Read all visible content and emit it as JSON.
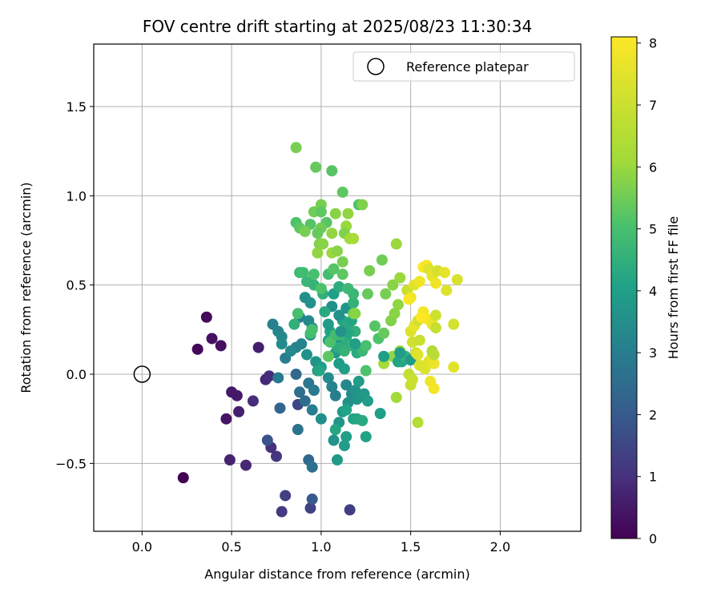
{
  "chart_data": {
    "type": "scatter",
    "title": "FOV centre drift starting at 2025/08/23 11:30:34",
    "xlabel": "Angular distance from reference (arcmin)",
    "ylabel": "Rotation from reference (arcmin)",
    "xlim": [
      -0.27,
      2.45
    ],
    "ylim": [
      -0.88,
      1.85
    ],
    "xticks": [
      0.0,
      0.5,
      1.0,
      1.5,
      2.0
    ],
    "xtick_labels": [
      "0.0",
      "0.5",
      "1.0",
      "1.5",
      "2.0"
    ],
    "yticks": [
      -0.5,
      0.0,
      0.5,
      1.0,
      1.5
    ],
    "ytick_labels": [
      "−0.5",
      "0.0",
      "0.5",
      "1.0",
      "1.5"
    ],
    "grid": true,
    "legend": {
      "position": "top-right",
      "entries": [
        "Reference platepar"
      ]
    },
    "reference_point": {
      "x": 0.0,
      "y": 0.0
    },
    "colorbar": {
      "label": "Hours from first FF file",
      "colormap": "viridis",
      "range": [
        0,
        8.1
      ],
      "ticks": [
        0,
        1,
        2,
        3,
        4,
        5,
        6,
        7,
        8
      ],
      "tick_labels": [
        "0",
        "1",
        "2",
        "3",
        "4",
        "5",
        "6",
        "7",
        "8"
      ]
    },
    "points": [
      {
        "x": 0.23,
        "y": -0.58,
        "h": 0.0
      },
      {
        "x": 0.31,
        "y": 0.14,
        "h": 0.1
      },
      {
        "x": 0.36,
        "y": 0.32,
        "h": 0.2
      },
      {
        "x": 0.39,
        "y": 0.2,
        "h": 0.3
      },
      {
        "x": 0.44,
        "y": 0.16,
        "h": 0.3
      },
      {
        "x": 0.47,
        "y": -0.25,
        "h": 0.4
      },
      {
        "x": 0.5,
        "y": -0.1,
        "h": 0.5
      },
      {
        "x": 0.53,
        "y": -0.12,
        "h": 0.5
      },
      {
        "x": 0.54,
        "y": -0.21,
        "h": 0.6
      },
      {
        "x": 0.49,
        "y": -0.48,
        "h": 0.7
      },
      {
        "x": 0.58,
        "y": -0.51,
        "h": 0.8
      },
      {
        "x": 0.62,
        "y": -0.15,
        "h": 0.9
      },
      {
        "x": 0.65,
        "y": 0.15,
        "h": 0.6
      },
      {
        "x": 0.69,
        "y": -0.03,
        "h": 0.8
      },
      {
        "x": 0.71,
        "y": -0.01,
        "h": 0.9
      },
      {
        "x": 0.72,
        "y": -0.41,
        "h": 1.0
      },
      {
        "x": 0.75,
        "y": -0.46,
        "h": 1.1
      },
      {
        "x": 0.78,
        "y": -0.77,
        "h": 1.2
      },
      {
        "x": 0.8,
        "y": -0.68,
        "h": 1.3
      },
      {
        "x": 0.94,
        "y": -0.75,
        "h": 1.4
      },
      {
        "x": 1.16,
        "y": -0.76,
        "h": 1.3
      },
      {
        "x": 0.87,
        "y": -0.17,
        "h": 1.5
      },
      {
        "x": 0.7,
        "y": -0.37,
        "h": 1.8
      },
      {
        "x": 0.95,
        "y": -0.7,
        "h": 2.0
      },
      {
        "x": 0.77,
        "y": -0.19,
        "h": 2.3
      },
      {
        "x": 0.86,
        "y": 0.0,
        "h": 2.4
      },
      {
        "x": 0.93,
        "y": -0.48,
        "h": 2.4
      },
      {
        "x": 0.95,
        "y": -0.52,
        "h": 2.6
      },
      {
        "x": 0.87,
        "y": -0.31,
        "h": 2.7
      },
      {
        "x": 0.88,
        "y": -0.1,
        "h": 2.6
      },
      {
        "x": 0.91,
        "y": -0.15,
        "h": 2.5
      },
      {
        "x": 0.93,
        "y": -0.05,
        "h": 2.8
      },
      {
        "x": 0.96,
        "y": -0.09,
        "h": 2.9
      },
      {
        "x": 0.95,
        "y": -0.2,
        "h": 3.0
      },
      {
        "x": 0.76,
        "y": -0.02,
        "h": 2.9
      },
      {
        "x": 0.8,
        "y": 0.09,
        "h": 3.0
      },
      {
        "x": 0.86,
        "y": 0.15,
        "h": 3.1
      },
      {
        "x": 0.89,
        "y": 0.17,
        "h": 3.2
      },
      {
        "x": 0.83,
        "y": 0.13,
        "h": 3.3
      },
      {
        "x": 0.73,
        "y": 0.28,
        "h": 3.1
      },
      {
        "x": 0.76,
        "y": 0.24,
        "h": 3.2
      },
      {
        "x": 0.78,
        "y": 0.21,
        "h": 3.3
      },
      {
        "x": 0.78,
        "y": 0.17,
        "h": 3.4
      },
      {
        "x": 0.88,
        "y": 0.32,
        "h": 3.1
      },
      {
        "x": 0.93,
        "y": 0.3,
        "h": 3.3
      },
      {
        "x": 0.91,
        "y": 0.43,
        "h": 3.5
      },
      {
        "x": 0.94,
        "y": 0.4,
        "h": 3.6
      },
      {
        "x": 0.95,
        "y": 0.26,
        "h": 3.4
      },
      {
        "x": 0.94,
        "y": 0.22,
        "h": 3.5
      },
      {
        "x": 0.92,
        "y": 0.11,
        "h": 3.6
      },
      {
        "x": 0.97,
        "y": 0.07,
        "h": 3.7
      },
      {
        "x": 0.98,
        "y": 0.02,
        "h": 3.8
      },
      {
        "x": 1.0,
        "y": 0.04,
        "h": 3.9
      },
      {
        "x": 1.04,
        "y": -0.02,
        "h": 3.4
      },
      {
        "x": 1.06,
        "y": -0.07,
        "h": 3.2
      },
      {
        "x": 1.08,
        "y": -0.12,
        "h": 3.0
      },
      {
        "x": 1.0,
        "y": -0.25,
        "h": 3.5
      },
      {
        "x": 1.07,
        "y": -0.37,
        "h": 3.6
      },
      {
        "x": 1.1,
        "y": -0.27,
        "h": 3.7
      },
      {
        "x": 1.12,
        "y": -0.21,
        "h": 3.8
      },
      {
        "x": 1.15,
        "y": -0.16,
        "h": 3.5
      },
      {
        "x": 1.17,
        "y": -0.11,
        "h": 3.4
      },
      {
        "x": 1.14,
        "y": -0.06,
        "h": 3.3
      },
      {
        "x": 1.19,
        "y": -0.09,
        "h": 3.6
      },
      {
        "x": 1.2,
        "y": -0.14,
        "h": 3.7
      },
      {
        "x": 1.21,
        "y": -0.04,
        "h": 3.9
      },
      {
        "x": 1.24,
        "y": -0.11,
        "h": 3.8
      },
      {
        "x": 1.26,
        "y": -0.15,
        "h": 3.9
      },
      {
        "x": 1.13,
        "y": -0.4,
        "h": 3.9
      },
      {
        "x": 1.14,
        "y": -0.35,
        "h": 4.0
      },
      {
        "x": 1.09,
        "y": -0.48,
        "h": 3.8
      },
      {
        "x": 1.18,
        "y": -0.25,
        "h": 4.1
      },
      {
        "x": 1.2,
        "y": -0.25,
        "h": 4.2
      },
      {
        "x": 1.23,
        "y": -0.26,
        "h": 4.3
      },
      {
        "x": 1.25,
        "y": -0.35,
        "h": 4.1
      },
      {
        "x": 1.33,
        "y": -0.22,
        "h": 4.0
      },
      {
        "x": 1.1,
        "y": 0.06,
        "h": 3.9
      },
      {
        "x": 1.13,
        "y": 0.03,
        "h": 4.0
      },
      {
        "x": 1.08,
        "y": 0.12,
        "h": 3.8
      },
      {
        "x": 1.11,
        "y": 0.19,
        "h": 3.7
      },
      {
        "x": 1.04,
        "y": 0.19,
        "h": 4.0
      },
      {
        "x": 1.05,
        "y": 0.24,
        "h": 4.1
      },
      {
        "x": 1.12,
        "y": 0.3,
        "h": 4.2
      },
      {
        "x": 1.15,
        "y": 0.28,
        "h": 4.3
      },
      {
        "x": 1.14,
        "y": 0.2,
        "h": 4.4
      },
      {
        "x": 1.19,
        "y": 0.24,
        "h": 4.5
      },
      {
        "x": 1.17,
        "y": 0.16,
        "h": 4.6
      },
      {
        "x": 1.09,
        "y": 0.15,
        "h": 4.4
      },
      {
        "x": 1.1,
        "y": 0.33,
        "h": 3.6
      },
      {
        "x": 1.14,
        "y": 0.37,
        "h": 3.7
      },
      {
        "x": 1.06,
        "y": 0.38,
        "h": 3.5
      },
      {
        "x": 1.02,
        "y": 0.35,
        "h": 4.3
      },
      {
        "x": 1.04,
        "y": 0.28,
        "h": 3.9
      },
      {
        "x": 1.01,
        "y": 0.45,
        "h": 4.5
      },
      {
        "x": 1.07,
        "y": 0.45,
        "h": 4.0
      },
      {
        "x": 1.1,
        "y": 0.49,
        "h": 4.4
      },
      {
        "x": 1.15,
        "y": 0.48,
        "h": 4.5
      },
      {
        "x": 1.18,
        "y": 0.4,
        "h": 4.6
      },
      {
        "x": 1.17,
        "y": 0.3,
        "h": 4.2
      },
      {
        "x": 1.2,
        "y": 0.12,
        "h": 4.3
      },
      {
        "x": 1.23,
        "y": 0.13,
        "h": 4.7
      },
      {
        "x": 1.25,
        "y": 0.16,
        "h": 5.0
      },
      {
        "x": 1.25,
        "y": 0.02,
        "h": 5.1
      },
      {
        "x": 1.3,
        "y": 0.27,
        "h": 5.2
      },
      {
        "x": 1.18,
        "y": 0.34,
        "h": 5.5
      },
      {
        "x": 1.26,
        "y": 0.45,
        "h": 5.4
      },
      {
        "x": 1.27,
        "y": 0.58,
        "h": 5.6
      },
      {
        "x": 1.34,
        "y": 0.64,
        "h": 5.5
      },
      {
        "x": 1.32,
        "y": 0.2,
        "h": 5.1
      },
      {
        "x": 1.35,
        "y": 0.23,
        "h": 5.4
      },
      {
        "x": 1.36,
        "y": 0.45,
        "h": 5.6
      },
      {
        "x": 1.39,
        "y": 0.3,
        "h": 5.7
      },
      {
        "x": 1.41,
        "y": 0.34,
        "h": 5.8
      },
      {
        "x": 1.43,
        "y": 0.39,
        "h": 5.9
      },
      {
        "x": 1.4,
        "y": 0.5,
        "h": 5.8
      },
      {
        "x": 1.44,
        "y": 0.54,
        "h": 6.0
      },
      {
        "x": 1.42,
        "y": 0.73,
        "h": 6.0
      },
      {
        "x": 1.4,
        "y": 0.1,
        "h": 5.9
      },
      {
        "x": 1.44,
        "y": 0.13,
        "h": 6.0
      },
      {
        "x": 1.42,
        "y": -0.13,
        "h": 6.1
      },
      {
        "x": 1.35,
        "y": 0.06,
        "h": 6.2
      },
      {
        "x": 1.35,
        "y": 0.1,
        "h": 4.0
      },
      {
        "x": 1.43,
        "y": 0.07,
        "h": 4.1
      },
      {
        "x": 1.45,
        "y": 0.07,
        "h": 4.2
      },
      {
        "x": 1.47,
        "y": 0.1,
        "h": 4.5
      },
      {
        "x": 1.44,
        "y": 0.12,
        "h": 3.9
      },
      {
        "x": 1.5,
        "y": 0.08,
        "h": 3.8
      },
      {
        "x": 1.49,
        "y": 0.0,
        "h": 6.8
      },
      {
        "x": 1.5,
        "y": -0.06,
        "h": 6.9
      },
      {
        "x": 1.51,
        "y": -0.03,
        "h": 7.0
      },
      {
        "x": 1.54,
        "y": -0.27,
        "h": 6.5
      },
      {
        "x": 1.51,
        "y": 0.18,
        "h": 7.1
      },
      {
        "x": 1.53,
        "y": 0.12,
        "h": 7.2
      },
      {
        "x": 1.55,
        "y": 0.05,
        "h": 7.3
      },
      {
        "x": 1.58,
        "y": 0.03,
        "h": 7.4
      },
      {
        "x": 1.6,
        "y": 0.07,
        "h": 7.5
      },
      {
        "x": 1.62,
        "y": 0.1,
        "h": 7.6
      },
      {
        "x": 1.63,
        "y": 0.06,
        "h": 7.7
      },
      {
        "x": 1.61,
        "y": -0.04,
        "h": 7.8
      },
      {
        "x": 1.63,
        "y": -0.08,
        "h": 7.9
      },
      {
        "x": 1.62,
        "y": 0.13,
        "h": 6.4
      },
      {
        "x": 1.63,
        "y": 0.11,
        "h": 6.6
      },
      {
        "x": 1.55,
        "y": 0.19,
        "h": 7.0
      },
      {
        "x": 1.54,
        "y": 0.11,
        "h": 7.5
      },
      {
        "x": 1.5,
        "y": 0.24,
        "h": 7.4
      },
      {
        "x": 1.52,
        "y": 0.27,
        "h": 7.6
      },
      {
        "x": 1.54,
        "y": 0.3,
        "h": 7.2
      },
      {
        "x": 1.57,
        "y": 0.35,
        "h": 7.9
      },
      {
        "x": 1.59,
        "y": 0.31,
        "h": 8.0
      },
      {
        "x": 1.56,
        "y": 0.32,
        "h": 8.1
      },
      {
        "x": 1.62,
        "y": 0.28,
        "h": 7.7
      },
      {
        "x": 1.64,
        "y": 0.33,
        "h": 7.1
      },
      {
        "x": 1.64,
        "y": 0.26,
        "h": 6.9
      },
      {
        "x": 1.48,
        "y": 0.47,
        "h": 6.9
      },
      {
        "x": 1.5,
        "y": 0.43,
        "h": 7.7
      },
      {
        "x": 1.49,
        "y": 0.42,
        "h": 8.0
      },
      {
        "x": 1.52,
        "y": 0.5,
        "h": 7.5
      },
      {
        "x": 1.55,
        "y": 0.52,
        "h": 7.8
      },
      {
        "x": 1.57,
        "y": 0.6,
        "h": 8.1
      },
      {
        "x": 1.59,
        "y": 0.61,
        "h": 8.0
      },
      {
        "x": 1.6,
        "y": 0.59,
        "h": 7.4
      },
      {
        "x": 1.62,
        "y": 0.55,
        "h": 7.6
      },
      {
        "x": 1.64,
        "y": 0.51,
        "h": 7.8
      },
      {
        "x": 1.65,
        "y": 0.58,
        "h": 7.2
      },
      {
        "x": 1.69,
        "y": 0.57,
        "h": 7.6
      },
      {
        "x": 1.7,
        "y": 0.47,
        "h": 7.4
      },
      {
        "x": 1.74,
        "y": 0.28,
        "h": 7.2
      },
      {
        "x": 1.74,
        "y": 0.04,
        "h": 7.5
      },
      {
        "x": 1.76,
        "y": 0.53,
        "h": 7.3
      },
      {
        "x": 0.86,
        "y": 1.27,
        "h": 5.6
      },
      {
        "x": 0.97,
        "y": 1.16,
        "h": 5.4
      },
      {
        "x": 1.06,
        "y": 1.14,
        "h": 5.2
      },
      {
        "x": 1.12,
        "y": 1.02,
        "h": 5.3
      },
      {
        "x": 1.21,
        "y": 0.95,
        "h": 5.1
      },
      {
        "x": 1.23,
        "y": 0.95,
        "h": 5.7
      },
      {
        "x": 1.0,
        "y": 0.95,
        "h": 5.6
      },
      {
        "x": 0.96,
        "y": 0.91,
        "h": 5.5
      },
      {
        "x": 1.0,
        "y": 0.91,
        "h": 5.3
      },
      {
        "x": 1.03,
        "y": 0.85,
        "h": 5.2
      },
      {
        "x": 1.08,
        "y": 0.9,
        "h": 5.8
      },
      {
        "x": 1.15,
        "y": 0.9,
        "h": 5.9
      },
      {
        "x": 1.14,
        "y": 0.83,
        "h": 6.0
      },
      {
        "x": 1.13,
        "y": 0.79,
        "h": 5.7
      },
      {
        "x": 1.16,
        "y": 0.76,
        "h": 6.1
      },
      {
        "x": 1.18,
        "y": 0.76,
        "h": 6.2
      },
      {
        "x": 1.0,
        "y": 0.82,
        "h": 5.5
      },
      {
        "x": 0.98,
        "y": 0.79,
        "h": 5.4
      },
      {
        "x": 0.94,
        "y": 0.84,
        "h": 5.2
      },
      {
        "x": 0.86,
        "y": 0.85,
        "h": 5.1
      },
      {
        "x": 0.88,
        "y": 0.82,
        "h": 5.3
      },
      {
        "x": 0.91,
        "y": 0.8,
        "h": 5.6
      },
      {
        "x": 0.99,
        "y": 0.73,
        "h": 5.7
      },
      {
        "x": 1.01,
        "y": 0.73,
        "h": 5.8
      },
      {
        "x": 0.98,
        "y": 0.68,
        "h": 5.9
      },
      {
        "x": 1.06,
        "y": 0.68,
        "h": 6.0
      },
      {
        "x": 1.09,
        "y": 0.69,
        "h": 5.8
      },
      {
        "x": 1.12,
        "y": 0.63,
        "h": 5.6
      },
      {
        "x": 1.06,
        "y": 0.79,
        "h": 5.9
      },
      {
        "x": 0.88,
        "y": 0.57,
        "h": 4.8
      },
      {
        "x": 0.9,
        "y": 0.57,
        "h": 4.9
      },
      {
        "x": 0.92,
        "y": 0.52,
        "h": 4.7
      },
      {
        "x": 0.96,
        "y": 0.5,
        "h": 4.6
      },
      {
        "x": 0.96,
        "y": 0.56,
        "h": 5.0
      },
      {
        "x": 1.0,
        "y": 0.48,
        "h": 5.1
      },
      {
        "x": 1.04,
        "y": 0.56,
        "h": 4.9
      },
      {
        "x": 1.07,
        "y": 0.59,
        "h": 5.2
      },
      {
        "x": 1.12,
        "y": 0.56,
        "h": 5.3
      },
      {
        "x": 1.15,
        "y": 0.48,
        "h": 4.8
      },
      {
        "x": 1.18,
        "y": 0.45,
        "h": 4.7
      },
      {
        "x": 1.19,
        "y": 0.34,
        "h": 5.8
      },
      {
        "x": 0.85,
        "y": 0.28,
        "h": 4.5
      },
      {
        "x": 0.87,
        "y": 0.34,
        "h": 5.0
      },
      {
        "x": 0.94,
        "y": 0.23,
        "h": 4.9
      },
      {
        "x": 0.95,
        "y": 0.25,
        "h": 5.0
      },
      {
        "x": 1.04,
        "y": 0.1,
        "h": 5.3
      },
      {
        "x": 1.05,
        "y": 0.18,
        "h": 5.1
      },
      {
        "x": 1.08,
        "y": 0.22,
        "h": 4.9
      },
      {
        "x": 1.11,
        "y": 0.22,
        "h": 4.7
      },
      {
        "x": 1.12,
        "y": 0.15,
        "h": 4.4
      },
      {
        "x": 1.15,
        "y": 0.23,
        "h": 4.2
      },
      {
        "x": 1.11,
        "y": 0.24,
        "h": 3.6
      },
      {
        "x": 1.19,
        "y": 0.17,
        "h": 4.0
      },
      {
        "x": 1.14,
        "y": -0.2,
        "h": 4.1
      },
      {
        "x": 1.08,
        "y": -0.31,
        "h": 4.2
      },
      {
        "x": 1.13,
        "y": 0.13,
        "h": 4.6
      },
      {
        "x": 0.99,
        "y": 0.02,
        "h": 4.2
      }
    ]
  }
}
